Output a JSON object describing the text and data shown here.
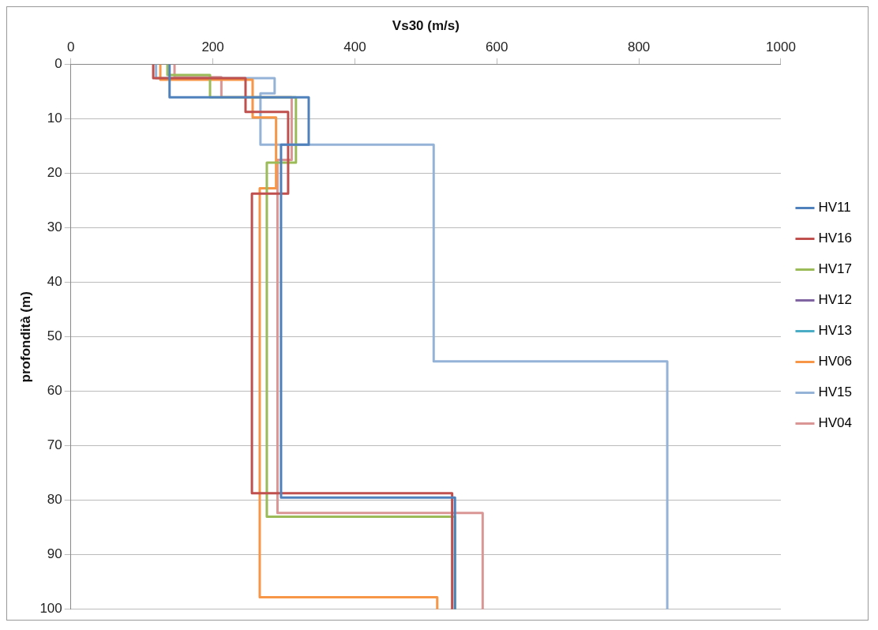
{
  "chart_data": {
    "type": "line",
    "xlabel": "Vs30 (m/s)",
    "ylabel": "profondità (m)",
    "xlim": [
      0,
      1000
    ],
    "xticks": [
      0,
      200,
      400,
      600,
      800,
      1000
    ],
    "ylim": [
      100,
      0
    ],
    "yticks": [
      0,
      10,
      20,
      30,
      40,
      50,
      60,
      70,
      80,
      90,
      100
    ],
    "grid": "y",
    "legend": "right",
    "marker": "none",
    "line_style": "solid",
    "series": [
      {
        "name": "HV11",
        "color": "#4f81bd",
        "x": [
          139,
          139,
          335,
          335,
          296,
          296,
          541,
          541
        ],
        "values": [
          0,
          6,
          6,
          14.7,
          14.7,
          79.5,
          79.5,
          100
        ]
      },
      {
        "name": "HV16",
        "color": "#c0504d",
        "x": [
          116,
          116,
          246,
          246,
          306,
          306,
          255,
          255,
          537,
          537
        ],
        "values": [
          0,
          2.5,
          2.5,
          8.7,
          8.7,
          23.7,
          23.7,
          78.7,
          78.7,
          100
        ]
      },
      {
        "name": "HV17",
        "color": "#9bbb59",
        "x": [
          136,
          136,
          196,
          196,
          317,
          317,
          276,
          276,
          541,
          541
        ],
        "values": [
          0,
          1.9,
          1.9,
          6,
          6,
          18,
          18,
          83,
          83,
          100
        ]
      },
      {
        "name": "HV12",
        "color": "#8064a2",
        "x": [
          null
        ],
        "values": [
          null
        ]
      },
      {
        "name": "HV13",
        "color": "#4bacc6",
        "x": [
          null
        ],
        "values": [
          null
        ]
      },
      {
        "name": "HV06",
        "color": "#f79646",
        "x": [
          126,
          126,
          256,
          256,
          289,
          289,
          266,
          266,
          516,
          516
        ],
        "values": [
          0,
          2.8,
          2.8,
          9.7,
          9.7,
          22.7,
          22.7,
          97.8,
          97.8,
          100
        ]
      },
      {
        "name": "HV15",
        "color": "#95b3d7",
        "x": [
          120,
          120,
          287,
          287,
          267,
          267,
          511,
          511,
          840,
          840
        ],
        "values": [
          0,
          2.5,
          2.5,
          5.3,
          5.3,
          14.7,
          14.7,
          54.5,
          54.5,
          100
        ]
      },
      {
        "name": "HV04",
        "color": "#d99694",
        "x": [
          146,
          146,
          212,
          212,
          311,
          311,
          291,
          291,
          580,
          580
        ],
        "values": [
          0,
          2.3,
          2.3,
          6,
          6,
          17.5,
          17.5,
          82.3,
          82.3,
          100
        ]
      }
    ]
  }
}
